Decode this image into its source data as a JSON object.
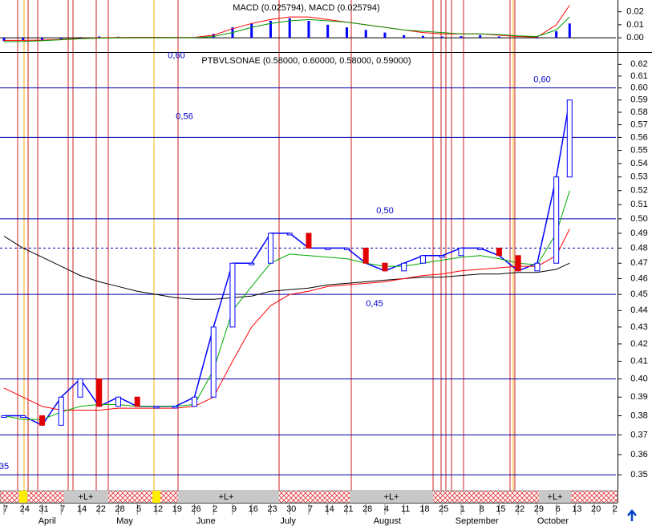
{
  "chart_data": [
    {
      "type": "bar",
      "title": "MACD (0.025794), MACD (0.025794)",
      "x": [
        0,
        1,
        2,
        3,
        4,
        5,
        6,
        7,
        8,
        9,
        10,
        11,
        12,
        13,
        14,
        15,
        16,
        17,
        18,
        19,
        20,
        21,
        22,
        23,
        24,
        25,
        26,
        27,
        28,
        29,
        29.7
      ],
      "values": [
        -0.0025,
        -0.002,
        -0.0015,
        -0.001,
        0.0005,
        0.001,
        0.0008,
        0.0005,
        0.0003,
        0.0002,
        0.0,
        0.003,
        0.008,
        0.011,
        0.013,
        0.015,
        0.013,
        0.01,
        0.008,
        0.006,
        0.004,
        0.002,
        0.0015,
        0.001,
        0.0012,
        0.002,
        0.001,
        0.0,
        -0.0005,
        0.005,
        0.011
      ],
      "color": "#0000ff",
      "lines": [
        {
          "color": "#ff0000",
          "values": [
            -0.002,
            -0.002,
            -0.0018,
            -0.0012,
            -0.0005,
            0.0,
            0.0003,
            0.0004,
            0.0004,
            0.0003,
            0.0003,
            0.002,
            0.007,
            0.011,
            0.014,
            0.016,
            0.016,
            0.014,
            0.012,
            0.01,
            0.008,
            0.006,
            0.004,
            0.003,
            0.003,
            0.003,
            0.002,
            0.001,
            0.0005,
            0.01,
            0.025
          ]
        },
        {
          "color": "#009900",
          "values": [
            -0.003,
            -0.0028,
            -0.0022,
            -0.0015,
            -0.0008,
            -0.0003,
            0.0,
            0.0001,
            0.0001,
            0.0001,
            0.0001,
            0.001,
            0.004,
            0.008,
            0.011,
            0.013,
            0.014,
            0.013,
            0.012,
            0.01,
            0.008,
            0.006,
            0.005,
            0.004,
            0.003,
            0.003,
            0.0025,
            0.0015,
            0.001,
            0.006,
            0.016
          ]
        }
      ],
      "ylim": [
        -0.011,
        0.029
      ],
      "yticks": [
        0.02,
        0.01,
        {
          "value": 0,
          "label": "0.00"
        }
      ],
      "xlim": [
        -0.21,
        32.13
      ]
    },
    {
      "type": "line",
      "title": "PTBVLSONAE (0.58000, 0.60000, 0.58000, 0.59000)",
      "log_scale": true,
      "x": [
        0,
        1,
        2,
        3,
        4,
        5,
        6,
        7,
        8,
        9,
        10,
        11,
        12,
        13,
        14,
        15,
        16,
        17,
        18,
        19,
        20,
        21,
        22,
        23,
        24,
        25,
        26,
        27,
        28,
        29,
        29.7
      ],
      "series": [
        {
          "color": "#0000ff",
          "values": [
            0.38,
            0.38,
            0.375,
            0.39,
            0.4,
            0.385,
            0.39,
            0.385,
            0.385,
            0.385,
            0.39,
            0.43,
            0.47,
            0.47,
            0.49,
            0.49,
            0.48,
            0.48,
            0.48,
            0.47,
            0.465,
            0.47,
            0.475,
            0.475,
            0.48,
            0.48,
            0.475,
            0.465,
            0.47,
            0.53,
            0.59
          ]
        },
        {
          "color": "#000000",
          "values": [
            0.488,
            0.48,
            0.474,
            0.468,
            0.462,
            0.458,
            0.455,
            0.452,
            0.45,
            0.448,
            0.447,
            0.447,
            0.448,
            0.449,
            0.452,
            0.453,
            0.454,
            0.456,
            0.457,
            0.458,
            0.459,
            0.46,
            0.461,
            0.461,
            0.462,
            0.463,
            0.463,
            0.464,
            0.464,
            0.466,
            0.47
          ]
        },
        {
          "color": "#ff0000",
          "values": [
            0.395,
            0.39,
            0.385,
            0.383,
            0.383,
            0.383,
            0.384,
            0.384,
            0.384,
            0.384,
            0.385,
            0.39,
            0.41,
            0.43,
            0.443,
            0.45,
            0.452,
            0.455,
            0.456,
            0.457,
            0.458,
            0.46,
            0.462,
            0.463,
            0.465,
            0.466,
            0.467,
            0.468,
            0.468,
            0.475,
            0.493
          ]
        },
        {
          "color": "#00aa00",
          "values": [
            0.38,
            0.378,
            0.378,
            0.382,
            0.385,
            0.386,
            0.386,
            0.385,
            0.385,
            0.385,
            0.386,
            0.405,
            0.44,
            0.455,
            0.47,
            0.476,
            0.475,
            0.474,
            0.473,
            0.47,
            0.468,
            0.468,
            0.47,
            0.472,
            0.474,
            0.475,
            0.473,
            0.47,
            0.469,
            0.49,
            0.52
          ]
        }
      ],
      "ylim": [
        0.345,
        0.63
      ],
      "yticks": [
        0.35,
        0.36,
        0.37,
        0.38,
        0.39,
        {
          "value": 0.4,
          "label": "0.40"
        },
        0.41,
        0.42,
        0.43,
        0.44,
        0.45,
        0.46,
        0.47,
        0.48,
        0.49,
        {
          "value": 0.5,
          "label": "0.50"
        },
        0.51,
        0.52,
        0.53,
        0.54,
        0.55,
        0.56,
        0.57,
        0.58,
        0.59,
        {
          "value": 0.6,
          "label": "0.60"
        },
        0.61,
        0.62
      ],
      "levels": [
        0.6,
        0.56,
        0.5,
        0.45,
        0.4,
        0.37,
        0.35
      ],
      "dashed_level": 0.48,
      "annotations": [
        {
          "value": 0.6,
          "label": "0,60"
        },
        {
          "value": 0.56,
          "label": "0,56"
        },
        {
          "value": 0.5,
          "label": "0,50"
        },
        {
          "value": 0.45,
          "label": "0,45"
        },
        {
          "value": 0.6,
          "label": "0,60"
        },
        {
          "value": 0.35,
          "label": "35"
        }
      ],
      "xlim": [
        -0.21,
        32.13
      ],
      "xticks": [
        {
          "value": 0,
          "label": "7"
        },
        {
          "value": 1,
          "label": "24"
        },
        {
          "value": 2,
          "label": "31"
        },
        {
          "value": 3,
          "label": "7"
        },
        {
          "value": 4,
          "label": "14"
        },
        {
          "value": 5,
          "label": "22"
        },
        {
          "value": 6,
          "label": "28"
        },
        {
          "value": 7,
          "label": "5"
        },
        {
          "value": 8,
          "label": "12"
        },
        {
          "value": 9,
          "label": "19"
        },
        {
          "value": 10,
          "label": "26"
        },
        {
          "value": 11,
          "label": "2"
        },
        {
          "value": 12,
          "label": "9"
        },
        {
          "value": 13,
          "label": "16"
        },
        {
          "value": 14,
          "label": "23"
        },
        {
          "value": 15,
          "label": "30"
        },
        {
          "value": 16,
          "label": "7"
        },
        {
          "value": 17,
          "label": "14"
        },
        {
          "value": 18,
          "label": "21"
        },
        {
          "value": 19,
          "label": "28"
        },
        {
          "value": 20,
          "label": "4"
        },
        {
          "value": 21,
          "label": "11"
        },
        {
          "value": 22,
          "label": "18"
        },
        {
          "value": 23,
          "label": "25"
        },
        {
          "value": 24,
          "label": "1"
        },
        {
          "value": 25,
          "label": "8"
        },
        {
          "value": 26,
          "label": "15"
        },
        {
          "value": 27,
          "label": "22"
        },
        {
          "value": 28,
          "label": "29"
        },
        {
          "value": 29,
          "label": "6"
        },
        {
          "value": 30,
          "label": "13"
        },
        {
          "value": 31,
          "label": "20"
        },
        {
          "value": 32,
          "label": "2"
        }
      ],
      "months": [
        {
          "value": 1.8,
          "label": "April"
        },
        {
          "value": 5.9,
          "label": "May"
        },
        {
          "value": 10.1,
          "label": "June"
        },
        {
          "value": 14.5,
          "label": "July"
        },
        {
          "value": 19.4,
          "label": "August"
        },
        {
          "value": 23.7,
          "label": "September"
        },
        {
          "value": 28.0,
          "label": "October"
        }
      ],
      "strip_labels": [
        "+L+",
        "+L+",
        "+L+",
        "+L+"
      ]
    }
  ]
}
